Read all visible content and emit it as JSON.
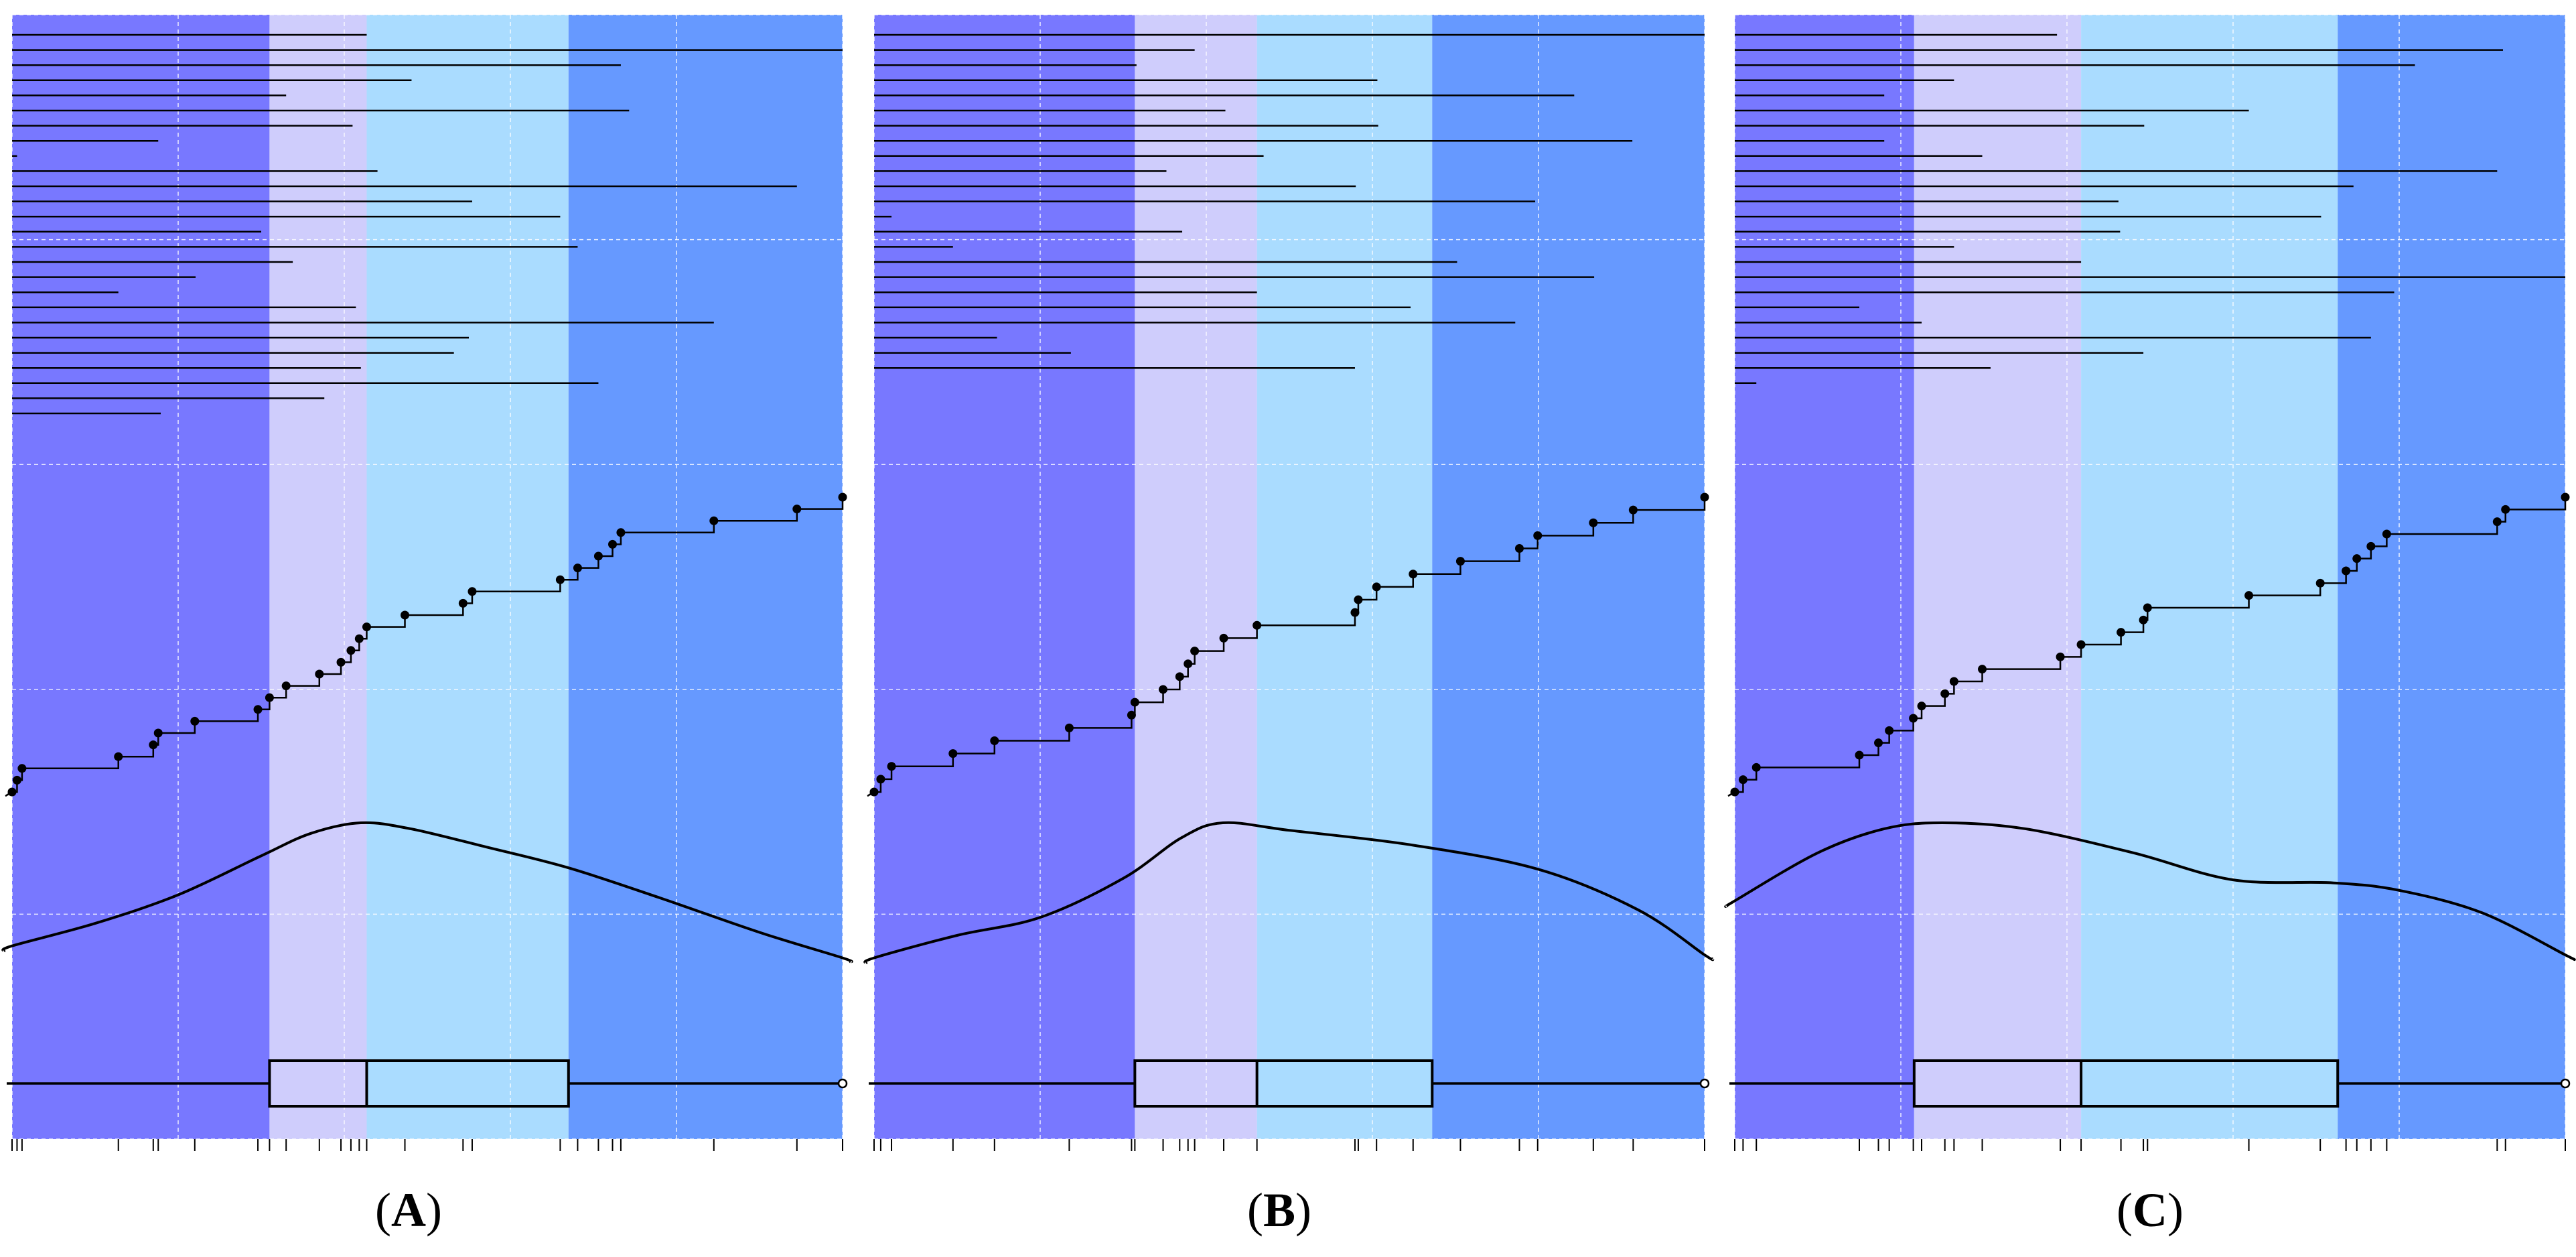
{
  "figure": {
    "colors": {
      "band1": "#7878ff",
      "band2": "#cfcdfc",
      "band3": "#aadcff",
      "band4": "#6699ff",
      "ink": "#000000",
      "grid": "#ffffff"
    },
    "panels": [
      {
        "label": "A",
        "label_open": "(",
        "label_close": ")"
      },
      {
        "label": "B",
        "label_open": "(",
        "label_close": ")"
      },
      {
        "label": "C",
        "label_open": "(",
        "label_close": ")"
      }
    ]
  },
  "chart_data": [
    {
      "panel": "A",
      "type": "composite: horizontal-bars + ECDF step + density curve + boxplot",
      "title": "",
      "xlabel": "",
      "ylabel": "",
      "x_range": [
        0,
        100
      ],
      "grid": true,
      "quartile_bands": [
        0,
        31,
        42.7,
        67,
        100
      ],
      "boxplot": {
        "min": 0,
        "q1": 31,
        "median": 42.7,
        "q3": 67,
        "max": 100
      },
      "sorted_values": [
        0,
        0.6,
        1.2,
        12.8,
        17,
        17.6,
        22,
        29.6,
        31,
        33,
        37,
        39.6,
        40.8,
        41.8,
        42.7,
        47.3,
        54.3,
        55.4,
        66,
        68.1,
        70.6,
        72.3,
        73.3,
        84.5,
        94.5,
        100
      ],
      "bar_values": [
        42.7,
        100,
        73.3,
        48.1,
        33,
        74.3,
        41,
        17.6,
        0.6,
        44,
        94.5,
        55.4,
        66,
        30,
        68.1,
        33.8,
        22.1,
        12.8,
        41.4,
        84.5,
        55,
        53.2,
        42,
        70.6,
        37.6,
        17.9
      ],
      "density": [
        [
          0,
          0.18
        ],
        [
          10,
          0.33
        ],
        [
          20,
          0.52
        ],
        [
          30,
          0.78
        ],
        [
          36,
          0.93
        ],
        [
          42,
          1.0
        ],
        [
          48,
          0.96
        ],
        [
          57,
          0.84
        ],
        [
          67,
          0.7
        ],
        [
          78,
          0.5
        ],
        [
          90,
          0.27
        ],
        [
          100,
          0.1
        ]
      ]
    },
    {
      "panel": "B",
      "type": "composite: horizontal-bars + ECDF step + density curve + boxplot",
      "title": "",
      "xlabel": "",
      "ylabel": "",
      "x_range": [
        0,
        100
      ],
      "grid": true,
      "quartile_bands": [
        0,
        31.4,
        46.1,
        67.2,
        100
      ],
      "boxplot": {
        "min": 0,
        "q1": 31.4,
        "median": 46.1,
        "q3": 67.2,
        "max": 100
      },
      "sorted_values": [
        0,
        0.8,
        2.1,
        9.5,
        14.5,
        23.5,
        31,
        31.4,
        34.8,
        36.8,
        37.8,
        38.6,
        42.1,
        46.1,
        57.9,
        58.3,
        60.5,
        64.9,
        70.6,
        77.7,
        79.9,
        86.6,
        91.4,
        100
      ],
      "bar_values": [
        100,
        38.6,
        31.6,
        60.6,
        84.3,
        42.3,
        60.7,
        91.3,
        46.9,
        35.2,
        58,
        79.6,
        2.1,
        37.1,
        9.5,
        70.2,
        86.7,
        46.1,
        64.6,
        77.2,
        14.8,
        23.7,
        57.9
      ],
      "density": [
        [
          0,
          0.1
        ],
        [
          10,
          0.25
        ],
        [
          20,
          0.37
        ],
        [
          30,
          0.63
        ],
        [
          37,
          0.9
        ],
        [
          42,
          1.0
        ],
        [
          50,
          0.95
        ],
        [
          65,
          0.85
        ],
        [
          80,
          0.69
        ],
        [
          92,
          0.42
        ],
        [
          100,
          0.12
        ]
      ]
    },
    {
      "panel": "C",
      "type": "composite: horizontal-bars + ECDF step + density curve + boxplot",
      "title": "",
      "xlabel": "",
      "ylabel": "",
      "x_range": [
        0,
        100
      ],
      "grid": true,
      "quartile_bands": [
        0,
        21.6,
        41.7,
        72.6,
        100
      ],
      "boxplot": {
        "min": 0,
        "q1": 21.6,
        "median": 41.7,
        "q3": 72.6,
        "max": 100
      },
      "sorted_values": [
        0,
        1,
        2.6,
        15,
        17.3,
        18.6,
        21.5,
        22.5,
        25.3,
        26.4,
        29.8,
        39.2,
        41.7,
        46.5,
        49.2,
        49.7,
        61.9,
        70.5,
        73.6,
        74.9,
        76.6,
        78.5,
        91.8,
        92.8,
        100
      ],
      "bar_values": [
        38.8,
        92.5,
        81.9,
        26.4,
        18,
        61.9,
        49.3,
        18,
        29.8,
        91.8,
        74.5,
        46.2,
        70.6,
        46.4,
        26.4,
        41.7,
        100,
        79.4,
        15,
        22.5,
        76.6,
        49.2,
        30.8,
        2.6
      ],
      "density": [
        [
          0,
          0.48
        ],
        [
          10,
          0.8
        ],
        [
          18,
          0.96
        ],
        [
          25,
          1.0
        ],
        [
          35,
          0.96
        ],
        [
          48,
          0.8
        ],
        [
          60,
          0.62
        ],
        [
          72,
          0.6
        ],
        [
          80,
          0.55
        ],
        [
          90,
          0.4
        ],
        [
          100,
          0.12
        ]
      ]
    }
  ]
}
